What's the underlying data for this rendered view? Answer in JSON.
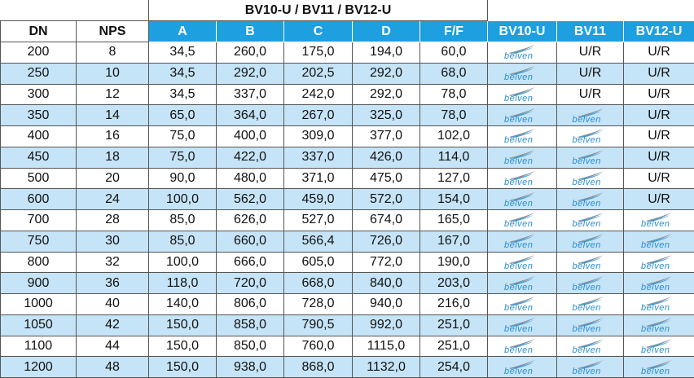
{
  "table": {
    "group_header": "BV10-U / BV11 / BV12-U",
    "columns": [
      "DN",
      "NPS",
      "A",
      "B",
      "C",
      "D",
      "F/F",
      "BV10-U",
      "BV11",
      "BV12-U"
    ],
    "rows": [
      [
        "200",
        "8",
        "34,5",
        "260,0",
        "175,0",
        "194,0",
        "60,0",
        "belven",
        "U/R",
        "U/R"
      ],
      [
        "250",
        "10",
        "34,5",
        "292,0",
        "202,5",
        "292,0",
        "68,0",
        "belven",
        "U/R",
        "U/R"
      ],
      [
        "300",
        "12",
        "34,5",
        "337,0",
        "242,0",
        "292,0",
        "78,0",
        "belven",
        "U/R",
        "U/R"
      ],
      [
        "350",
        "14",
        "65,0",
        "364,0",
        "267,0",
        "325,0",
        "78,0",
        "belven",
        "belven",
        "U/R"
      ],
      [
        "400",
        "16",
        "75,0",
        "400,0",
        "309,0",
        "377,0",
        "102,0",
        "belven",
        "belven",
        "U/R"
      ],
      [
        "450",
        "18",
        "75,0",
        "422,0",
        "337,0",
        "426,0",
        "114,0",
        "belven",
        "belven",
        "U/R"
      ],
      [
        "500",
        "20",
        "90,0",
        "480,0",
        "371,0",
        "475,0",
        "127,0",
        "belven",
        "belven",
        "U/R"
      ],
      [
        "600",
        "24",
        "100,0",
        "562,0",
        "459,0",
        "572,0",
        "154,0",
        "belven",
        "belven",
        "U/R"
      ],
      [
        "700",
        "28",
        "85,0",
        "626,0",
        "527,0",
        "674,0",
        "165,0",
        "belven",
        "belven",
        "belven"
      ],
      [
        "750",
        "30",
        "85,0",
        "660,0",
        "566,4",
        "726,0",
        "167,0",
        "belven",
        "belven",
        "belven"
      ],
      [
        "800",
        "32",
        "100,0",
        "666,0",
        "605,0",
        "772,0",
        "190,0",
        "belven",
        "belven",
        "belven"
      ],
      [
        "900",
        "36",
        "118,0",
        "720,0",
        "668,0",
        "840,0",
        "203,0",
        "belven",
        "belven",
        "belven"
      ],
      [
        "1000",
        "40",
        "140,0",
        "806,0",
        "728,0",
        "940,0",
        "216,0",
        "belven",
        "belven",
        "belven"
      ],
      [
        "1050",
        "42",
        "150,0",
        "858,0",
        "790,5",
        "992,0",
        "251,0",
        "belven",
        "belven",
        "belven"
      ],
      [
        "1100",
        "44",
        "150,0",
        "850,0",
        "760,0",
        "1115,0",
        "251,0",
        "belven",
        "belven",
        "belven"
      ],
      [
        "1200",
        "48",
        "150,0",
        "938,0",
        "868,0",
        "1132,0",
        "254,0",
        "belven",
        "belven",
        "belven"
      ]
    ]
  }
}
